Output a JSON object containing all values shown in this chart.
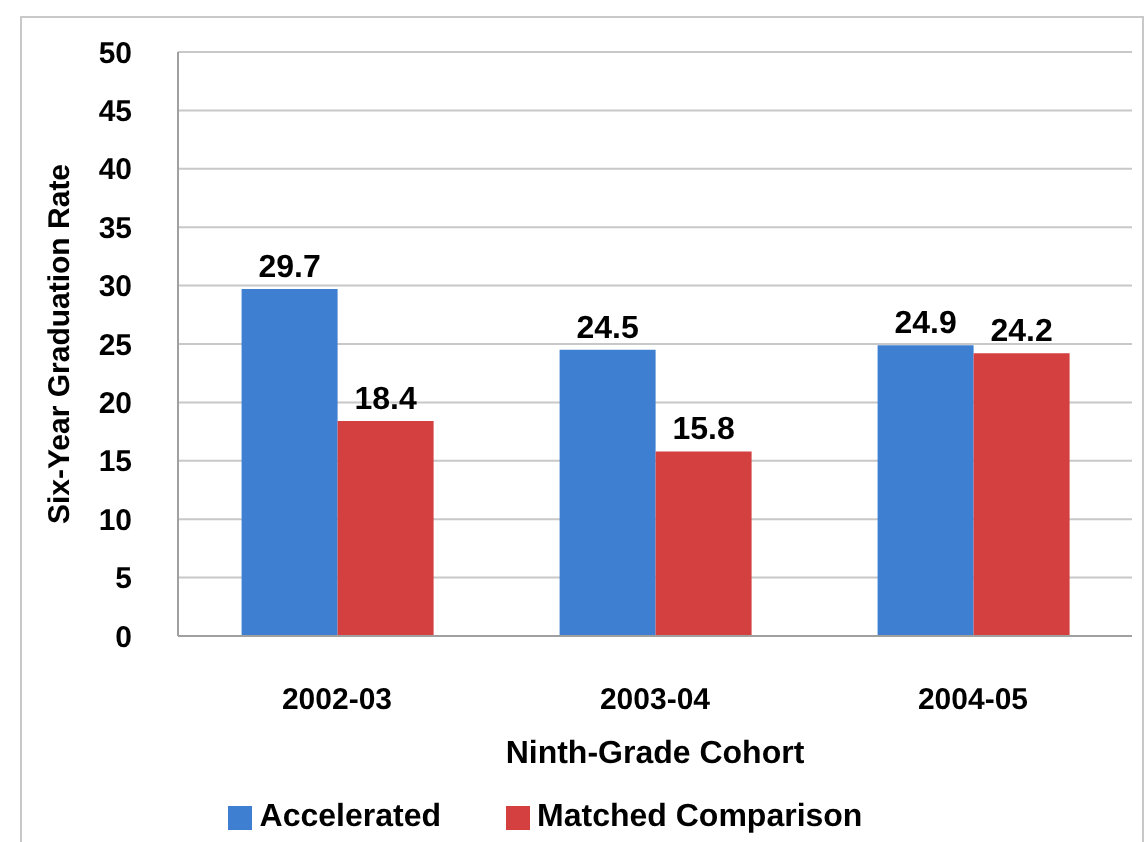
{
  "chart_data": {
    "type": "bar",
    "categories": [
      "2002-03",
      "2003-04",
      "2004-05"
    ],
    "series": [
      {
        "name": "Accelerated",
        "color": "#3f7fd2",
        "values": [
          29.7,
          24.5,
          24.9
        ]
      },
      {
        "name": "Matched Comparison",
        "color": "#d43f3f",
        "values": [
          18.4,
          15.8,
          24.2
        ]
      }
    ],
    "xlabel": "Ninth-Grade Cohort",
    "ylabel": "Six-Year Graduation Rate",
    "ylim": [
      0,
      50
    ],
    "yticks": [
      0,
      5,
      10,
      15,
      20,
      25,
      30,
      35,
      40,
      45,
      50
    ],
    "grid": "y",
    "legend": "bottom",
    "data_labels": true
  }
}
